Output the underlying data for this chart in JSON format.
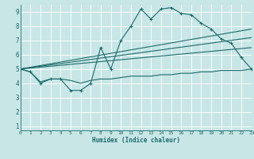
{
  "xlabel": "Humidex (Indice chaleur)",
  "xlim": [
    0,
    23
  ],
  "ylim": [
    0.7,
    9.5
  ],
  "xticks": [
    0,
    1,
    2,
    3,
    4,
    5,
    6,
    7,
    8,
    9,
    10,
    11,
    12,
    13,
    14,
    15,
    16,
    17,
    18,
    19,
    20,
    21,
    22,
    23
  ],
  "yticks": [
    1,
    2,
    3,
    4,
    5,
    6,
    7,
    8,
    9
  ],
  "bg_color": "#c8e6e6",
  "line_color": "#1a6b6b",
  "grid_color": "#ffffff",
  "jagged_x": [
    0,
    1,
    2,
    3,
    4,
    5,
    6,
    7,
    8,
    9,
    10,
    11,
    12,
    13,
    14,
    15,
    16,
    17,
    18,
    19,
    20,
    21,
    22,
    23
  ],
  "jagged_y": [
    5.0,
    4.8,
    4.0,
    4.3,
    4.3,
    3.5,
    3.5,
    4.0,
    6.5,
    5.0,
    7.0,
    8.0,
    9.2,
    8.5,
    9.2,
    9.3,
    8.9,
    8.8,
    8.2,
    7.8,
    7.1,
    6.8,
    5.8,
    5.0
  ],
  "line1_x": [
    0,
    23
  ],
  "line1_y": [
    5.0,
    7.8
  ],
  "line2_x": [
    0,
    23
  ],
  "line2_y": [
    5.0,
    7.2
  ],
  "line3_x": [
    0,
    23
  ],
  "line3_y": [
    5.0,
    6.5
  ],
  "flat_x": [
    0,
    1,
    2,
    3,
    4,
    5,
    6,
    7,
    8,
    9,
    10,
    11,
    12,
    13,
    14,
    15,
    16,
    17,
    18,
    19,
    20,
    21,
    22,
    23
  ],
  "flat_y": [
    5.0,
    4.8,
    4.1,
    4.3,
    4.3,
    4.2,
    4.0,
    4.2,
    4.3,
    4.3,
    4.4,
    4.5,
    4.5,
    4.5,
    4.6,
    4.6,
    4.7,
    4.7,
    4.8,
    4.8,
    4.9,
    4.9,
    4.9,
    5.0
  ]
}
